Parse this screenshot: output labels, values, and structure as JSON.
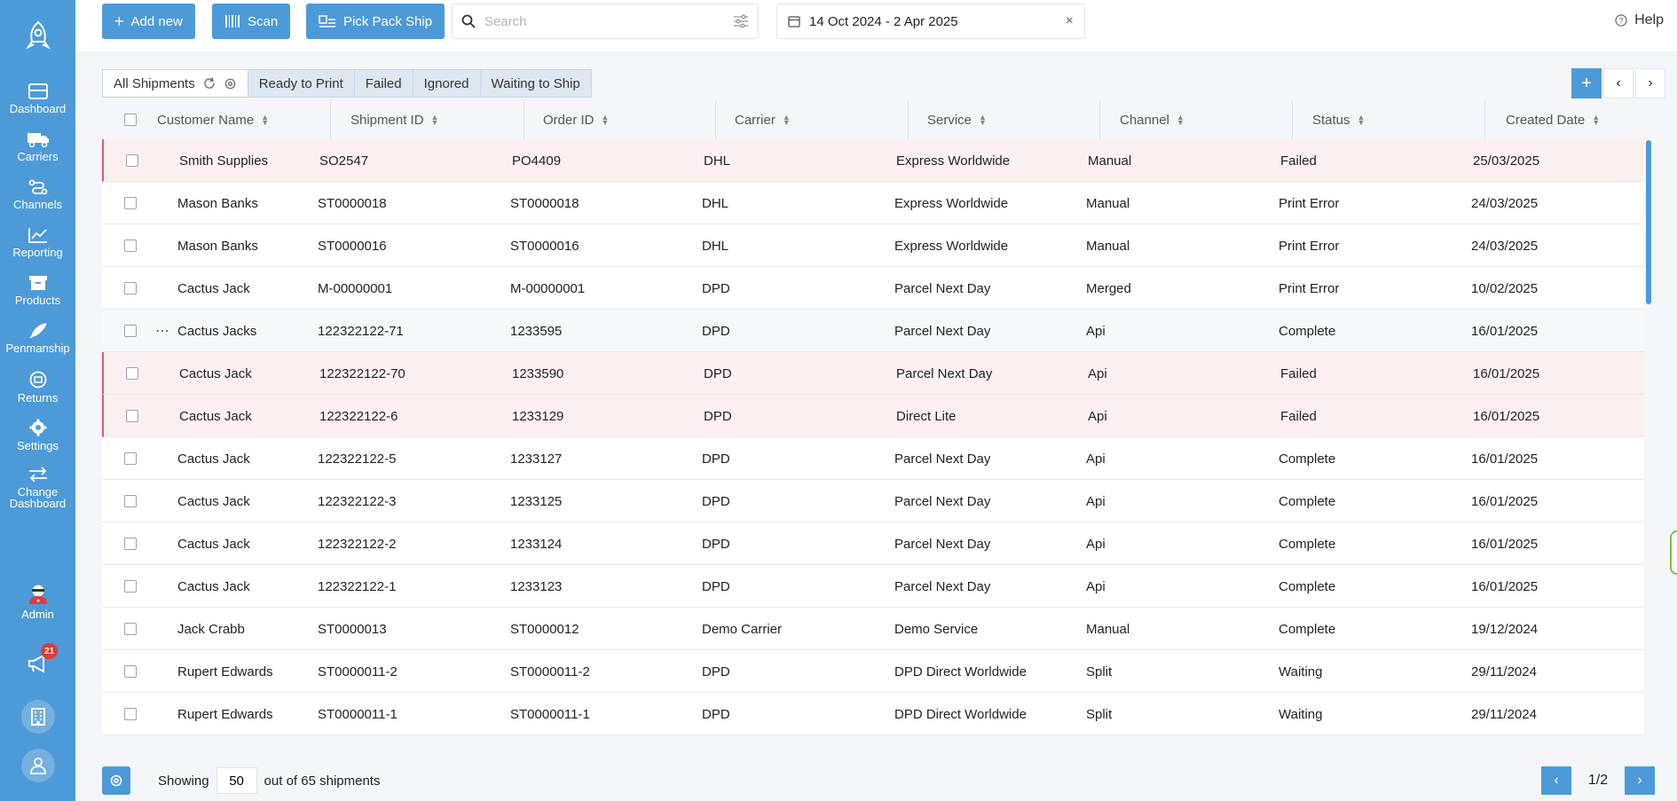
{
  "sidebar": {
    "items": [
      {
        "label": "Dashboard",
        "icon": "dashboard-icon"
      },
      {
        "label": "Carriers",
        "icon": "truck-icon"
      },
      {
        "label": "Channels",
        "icon": "channels-icon"
      },
      {
        "label": "Reporting",
        "icon": "chart-icon"
      },
      {
        "label": "Products",
        "icon": "box-icon"
      },
      {
        "label": "Penmanship",
        "icon": "feather-icon"
      },
      {
        "label": "Returns",
        "icon": "returns-icon"
      },
      {
        "label": "Settings",
        "icon": "gear-icon"
      },
      {
        "label": "Change Dashboard",
        "icon": "swap-icon"
      },
      {
        "label": "Admin",
        "icon": "admin-icon"
      }
    ],
    "notifications_count": "21"
  },
  "toolbar": {
    "add_new": "Add new",
    "scan": "Scan",
    "pick_pack_ship": "Pick Pack Ship",
    "search_placeholder": "Search",
    "date_range": "14 Oct 2024 - 2 Apr 2025",
    "help": "Help"
  },
  "tabs": [
    "All Shipments",
    "Ready to Print",
    "Failed",
    "Ignored",
    "Waiting to Ship"
  ],
  "columns": [
    "Customer Name",
    "Shipment ID",
    "Order ID",
    "Carrier",
    "Service",
    "Channel",
    "Status",
    "Created Date"
  ],
  "rows": [
    {
      "customer": "Smith Supplies",
      "shipment_id": "SO2547",
      "order_id": "PO4409",
      "carrier": "DHL",
      "service": "Express Worldwide",
      "channel": "Manual",
      "status": "Failed",
      "created": "25/03/2025"
    },
    {
      "customer": "Mason Banks",
      "shipment_id": "ST0000018",
      "order_id": "ST0000018",
      "carrier": "DHL",
      "service": "Express Worldwide",
      "channel": "Manual",
      "status": "Print Error",
      "created": "24/03/2025"
    },
    {
      "customer": "Mason Banks",
      "shipment_id": "ST0000016",
      "order_id": "ST0000016",
      "carrier": "DHL",
      "service": "Express Worldwide",
      "channel": "Manual",
      "status": "Print Error",
      "created": "24/03/2025"
    },
    {
      "customer": "Cactus Jack",
      "shipment_id": "M-00000001",
      "order_id": "M-00000001",
      "carrier": "DPD",
      "service": "Parcel Next Day",
      "channel": "Merged",
      "status": "Print Error",
      "created": "10/02/2025"
    },
    {
      "customer": "Cactus Jacks",
      "shipment_id": "122322122-71",
      "order_id": "1233595",
      "carrier": "DPD",
      "service": "Parcel Next Day",
      "channel": "Api",
      "status": "Complete",
      "created": "16/01/2025"
    },
    {
      "customer": "Cactus Jack",
      "shipment_id": "122322122-70",
      "order_id": "1233590",
      "carrier": "DPD",
      "service": "Parcel Next Day",
      "channel": "Api",
      "status": "Failed",
      "created": "16/01/2025"
    },
    {
      "customer": "Cactus Jack",
      "shipment_id": "122322122-6",
      "order_id": "1233129",
      "carrier": "DPD",
      "service": "Direct Lite",
      "channel": "Api",
      "status": "Failed",
      "created": "16/01/2025"
    },
    {
      "customer": "Cactus Jack",
      "shipment_id": "122322122-5",
      "order_id": "1233127",
      "carrier": "DPD",
      "service": "Parcel Next Day",
      "channel": "Api",
      "status": "Complete",
      "created": "16/01/2025"
    },
    {
      "customer": "Cactus Jack",
      "shipment_id": "122322122-3",
      "order_id": "1233125",
      "carrier": "DPD",
      "service": "Parcel Next Day",
      "channel": "Api",
      "status": "Complete",
      "created": "16/01/2025"
    },
    {
      "customer": "Cactus Jack",
      "shipment_id": "122322122-2",
      "order_id": "1233124",
      "carrier": "DPD",
      "service": "Parcel Next Day",
      "channel": "Api",
      "status": "Complete",
      "created": "16/01/2025"
    },
    {
      "customer": "Cactus Jack",
      "shipment_id": "122322122-1",
      "order_id": "1233123",
      "carrier": "DPD",
      "service": "Parcel Next Day",
      "channel": "Api",
      "status": "Complete",
      "created": "16/01/2025"
    },
    {
      "customer": "Jack Crabb",
      "shipment_id": "ST0000013",
      "order_id": "ST0000012",
      "carrier": "Demo Carrier",
      "service": "Demo Service",
      "channel": "Manual",
      "status": "Complete",
      "created": "19/12/2024"
    },
    {
      "customer": "Rupert Edwards",
      "shipment_id": "ST0000011-2",
      "order_id": "ST0000011-2",
      "carrier": "DPD",
      "service": "DPD Direct Worldwide",
      "channel": "Split",
      "status": "Waiting",
      "created": "29/11/2024"
    },
    {
      "customer": "Rupert Edwards",
      "shipment_id": "ST0000011-1",
      "order_id": "ST0000011-1",
      "carrier": "DPD",
      "service": "DPD Direct Worldwide",
      "channel": "Split",
      "status": "Waiting",
      "created": "29/11/2024"
    }
  ],
  "footer": {
    "showing_label": "Showing",
    "page_size": "50",
    "total_label": "out of 65 shipments",
    "page_indicator": "1/2"
  }
}
